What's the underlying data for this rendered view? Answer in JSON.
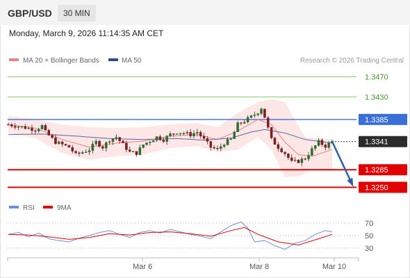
{
  "header": {
    "symbol": "GBP/USD",
    "timeframe": "30 MIN"
  },
  "datetime": "Monday, March 9, 2026 11:14:35 AM CET",
  "legend": {
    "ma_bollinger": "MA 20 + Bollinger Bands",
    "ma50": "MA 50",
    "credit": "Research © 2026 Trading Central"
  },
  "rsi_legend": {
    "rsi": "RSI",
    "ma": "9MA"
  },
  "colors": {
    "bollinger_fill": "#fde2e2",
    "ma20": "#f08080",
    "ma50": "#5b66a8",
    "resistance": "#8fc66d",
    "pivot": "#3a6fd8",
    "support": "#e00000",
    "rsi": "#6b8ed8",
    "rsi_ma": "#e00000",
    "arrow": "#2c5fa8"
  },
  "chart_data": [
    {
      "type": "candlestick",
      "x_ticks": [
        "Mar 6",
        "Mar 8",
        "Mar 10"
      ],
      "ylim": [
        1.323,
        1.349
      ],
      "price_levels": [
        {
          "label": "1.3470",
          "value": 1.347,
          "kind": "resistance"
        },
        {
          "label": "1.3430",
          "value": 1.343,
          "kind": "resistance"
        },
        {
          "label": "1.3385",
          "value": 1.3385,
          "kind": "pivot"
        },
        {
          "label": "1.3341",
          "value": 1.3341,
          "kind": "last"
        },
        {
          "label": "1.3285",
          "value": 1.3285,
          "kind": "support"
        },
        {
          "label": "1.3250",
          "value": 1.325,
          "kind": "support"
        }
      ],
      "close_path": [
        [
          0,
          1.3375
        ],
        [
          4,
          1.337
        ],
        [
          8,
          1.3365
        ],
        [
          10,
          1.3372
        ],
        [
          11,
          1.336
        ],
        [
          14,
          1.334
        ],
        [
          18,
          1.333
        ],
        [
          20,
          1.3315
        ],
        [
          24,
          1.3325
        ],
        [
          26,
          1.334
        ],
        [
          28,
          1.333
        ],
        [
          30,
          1.3345
        ],
        [
          32,
          1.335
        ],
        [
          34,
          1.3335
        ],
        [
          36,
          1.332
        ],
        [
          38,
          1.3318
        ],
        [
          40,
          1.3335
        ],
        [
          44,
          1.335
        ],
        [
          46,
          1.3345
        ],
        [
          48,
          1.3355
        ],
        [
          50,
          1.336
        ],
        [
          52,
          1.3358
        ],
        [
          54,
          1.3355
        ],
        [
          56,
          1.336
        ],
        [
          58,
          1.3345
        ],
        [
          60,
          1.333
        ],
        [
          62,
          1.3325
        ],
        [
          64,
          1.3338
        ],
        [
          66,
          1.3345
        ],
        [
          68,
          1.3375
        ],
        [
          70,
          1.3382
        ],
        [
          72,
          1.339
        ],
        [
          74,
          1.34
        ],
        [
          75,
          1.3408
        ],
        [
          76,
          1.339
        ],
        [
          78,
          1.3345
        ],
        [
          80,
          1.333
        ],
        [
          82,
          1.3318
        ],
        [
          84,
          1.33
        ],
        [
          86,
          1.3302
        ],
        [
          88,
          1.3308
        ],
        [
          90,
          1.3325
        ],
        [
          92,
          1.334
        ],
        [
          94,
          1.3332
        ],
        [
          96,
          1.3341
        ]
      ],
      "ma20_path": [
        [
          0,
          1.3375
        ],
        [
          8,
          1.3368
        ],
        [
          16,
          1.3345
        ],
        [
          24,
          1.333
        ],
        [
          32,
          1.3338
        ],
        [
          40,
          1.3342
        ],
        [
          48,
          1.3352
        ],
        [
          56,
          1.3355
        ],
        [
          62,
          1.3345
        ],
        [
          68,
          1.3362
        ],
        [
          74,
          1.3385
        ],
        [
          78,
          1.3375
        ],
        [
          82,
          1.334
        ],
        [
          86,
          1.3315
        ],
        [
          90,
          1.3312
        ],
        [
          96,
          1.3325
        ]
      ],
      "ma50_path": [
        [
          0,
          1.3355
        ],
        [
          10,
          1.3356
        ],
        [
          20,
          1.3352
        ],
        [
          30,
          1.3347
        ],
        [
          40,
          1.3345
        ],
        [
          50,
          1.3347
        ],
        [
          58,
          1.3344
        ],
        [
          66,
          1.3348
        ],
        [
          72,
          1.336
        ],
        [
          76,
          1.3365
        ],
        [
          82,
          1.3358
        ],
        [
          88,
          1.3345
        ],
        [
          96,
          1.3338
        ]
      ],
      "bollinger_upper": [
        [
          0,
          1.3392
        ],
        [
          8,
          1.3385
        ],
        [
          16,
          1.3375
        ],
        [
          24,
          1.337
        ],
        [
          32,
          1.3368
        ],
        [
          40,
          1.337
        ],
        [
          48,
          1.3375
        ],
        [
          56,
          1.3378
        ],
        [
          62,
          1.337
        ],
        [
          68,
          1.3398
        ],
        [
          74,
          1.342
        ],
        [
          78,
          1.3425
        ],
        [
          82,
          1.342
        ],
        [
          84,
          1.3395
        ],
        [
          88,
          1.335
        ],
        [
          96,
          1.3345
        ]
      ],
      "bollinger_lower": [
        [
          0,
          1.3358
        ],
        [
          8,
          1.3348
        ],
        [
          16,
          1.3318
        ],
        [
          24,
          1.3305
        ],
        [
          32,
          1.3312
        ],
        [
          40,
          1.3315
        ],
        [
          48,
          1.3328
        ],
        [
          56,
          1.3332
        ],
        [
          62,
          1.332
        ],
        [
          68,
          1.3325
        ],
        [
          74,
          1.335
        ],
        [
          78,
          1.3325
        ],
        [
          82,
          1.327
        ],
        [
          86,
          1.3272
        ],
        [
          90,
          1.3285
        ],
        [
          96,
          1.3282
        ]
      ],
      "forecast_arrow": {
        "from": [
          96,
          1.3341
        ],
        "to": [
          102,
          1.3255
        ]
      }
    },
    {
      "type": "line",
      "name": "RSI",
      "y_ticks": [
        "70",
        "50",
        "30"
      ],
      "ylim": [
        20,
        80
      ],
      "rsi": [
        [
          0,
          52
        ],
        [
          3,
          55
        ],
        [
          6,
          48
        ],
        [
          9,
          54
        ],
        [
          12,
          45
        ],
        [
          15,
          42
        ],
        [
          18,
          40
        ],
        [
          21,
          46
        ],
        [
          24,
          50
        ],
        [
          27,
          55
        ],
        [
          30,
          58
        ],
        [
          33,
          52
        ],
        [
          36,
          47
        ],
        [
          39,
          55
        ],
        [
          42,
          58
        ],
        [
          45,
          54
        ],
        [
          48,
          60
        ],
        [
          51,
          56
        ],
        [
          54,
          52
        ],
        [
          57,
          49
        ],
        [
          60,
          45
        ],
        [
          63,
          56
        ],
        [
          66,
          66
        ],
        [
          69,
          72
        ],
        [
          71,
          62
        ],
        [
          73,
          40
        ],
        [
          76,
          42
        ],
        [
          79,
          34
        ],
        [
          82,
          28
        ],
        [
          85,
          38
        ],
        [
          88,
          42
        ],
        [
          91,
          52
        ],
        [
          94,
          58
        ],
        [
          96,
          56
        ]
      ],
      "ma": [
        [
          0,
          52
        ],
        [
          6,
          51
        ],
        [
          12,
          48
        ],
        [
          18,
          44
        ],
        [
          24,
          47
        ],
        [
          30,
          53
        ],
        [
          36,
          51
        ],
        [
          42,
          55
        ],
        [
          48,
          56
        ],
        [
          54,
          53
        ],
        [
          60,
          49
        ],
        [
          66,
          58
        ],
        [
          70,
          63
        ],
        [
          74,
          52
        ],
        [
          80,
          40
        ],
        [
          86,
          35
        ],
        [
          92,
          45
        ],
        [
          96,
          52
        ]
      ]
    }
  ]
}
